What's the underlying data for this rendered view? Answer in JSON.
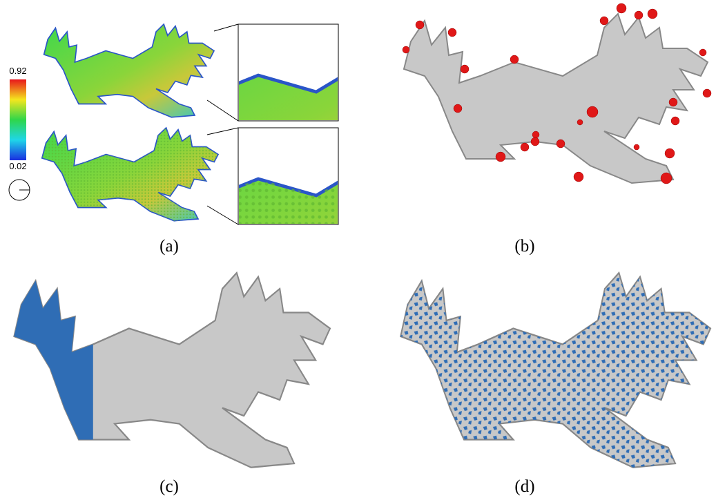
{
  "figure": {
    "colorbar": {
      "max_label": "0.92",
      "min_label": "0.02"
    },
    "captions": [
      "(a)",
      "(b)",
      "(c)",
      "(d)"
    ]
  }
}
